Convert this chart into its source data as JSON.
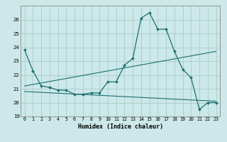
{
  "xlabel": "Humidex (Indice chaleur)",
  "bg_color": "#cce8e8",
  "line_color": "#1a7070",
  "grid_color": "#aacccc",
  "xlim": [
    -0.5,
    23.5
  ],
  "ylim": [
    19,
    27
  ],
  "yticks": [
    19,
    20,
    21,
    22,
    23,
    24,
    25,
    26
  ],
  "xticks": [
    0,
    1,
    2,
    3,
    4,
    5,
    6,
    7,
    8,
    9,
    10,
    11,
    12,
    13,
    14,
    15,
    16,
    17,
    18,
    19,
    20,
    21,
    22,
    23
  ],
  "xtick_labels": [
    "0",
    "1",
    "2",
    "3",
    "4",
    "5",
    "6",
    "7",
    "8",
    "9",
    "10",
    "11",
    "12",
    "13",
    "14",
    "15",
    "16",
    "17",
    "18",
    "19",
    "20",
    "21",
    "22",
    "23"
  ],
  "series1_x": [
    0,
    1,
    2,
    3,
    4,
    5,
    6,
    7,
    8,
    9,
    10,
    11,
    12,
    13,
    14,
    15,
    16,
    17,
    18,
    19,
    20,
    21,
    22,
    23
  ],
  "series1_y": [
    23.8,
    22.3,
    21.2,
    21.1,
    20.9,
    20.9,
    20.6,
    20.6,
    20.7,
    20.7,
    21.5,
    21.5,
    22.7,
    23.2,
    26.1,
    26.5,
    25.3,
    25.3,
    23.7,
    22.4,
    21.8,
    19.5,
    20.0,
    20.0
  ],
  "series2_x": [
    0,
    23
  ],
  "series2_y": [
    21.2,
    23.7
  ],
  "series3_x": [
    0,
    23
  ],
  "series3_y": [
    20.8,
    20.1
  ]
}
